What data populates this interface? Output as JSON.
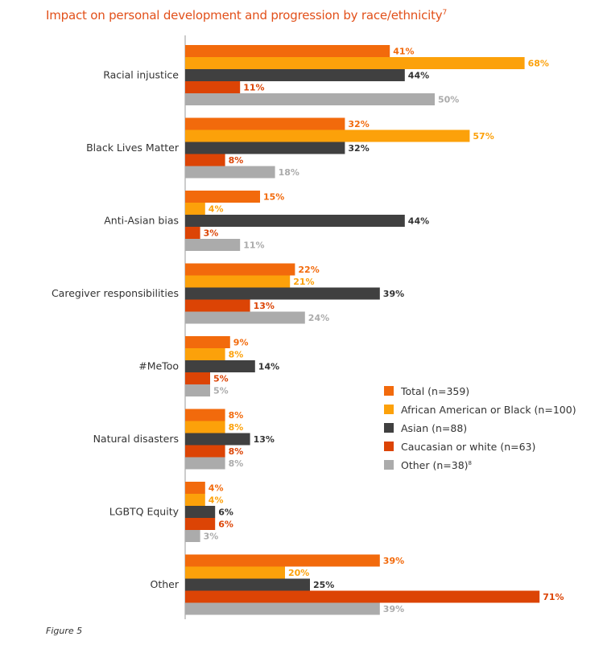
{
  "chart_data": {
    "type": "bar",
    "orientation": "horizontal",
    "title": "Impact on personal development and progression by race/ethnicity",
    "title_footnote": "7",
    "categories": [
      "Racial injustice",
      "Black Lives Matter",
      "Anti-Asian bias",
      "Caregiver responsibilities",
      "#MeToo",
      "Natural disasters",
      "LGBTQ Equity",
      "Other"
    ],
    "series": [
      {
        "name": "Total (n=359)",
        "color": "#f26a0c",
        "values": [
          41,
          32,
          15,
          22,
          9,
          8,
          4,
          39
        ]
      },
      {
        "name": "African American or Black (n=100)",
        "color": "#fca10a",
        "values": [
          68,
          57,
          4,
          21,
          8,
          8,
          4,
          20
        ]
      },
      {
        "name": "Asian (n=88)",
        "color": "#404040",
        "values": [
          44,
          32,
          44,
          39,
          14,
          13,
          6,
          25
        ]
      },
      {
        "name": "Caucasian or white (n=63)",
        "color": "#dc4405",
        "values": [
          11,
          8,
          3,
          13,
          5,
          8,
          6,
          71
        ]
      },
      {
        "name": "Other (n=38)",
        "name_footnote": "8",
        "color": "#ababab",
        "values": [
          50,
          18,
          11,
          24,
          5,
          8,
          3,
          39
        ]
      }
    ],
    "value_suffix": "%",
    "xlim": [
      0,
      80
    ],
    "grid": false,
    "legend": "right"
  },
  "caption": "Figure 5"
}
